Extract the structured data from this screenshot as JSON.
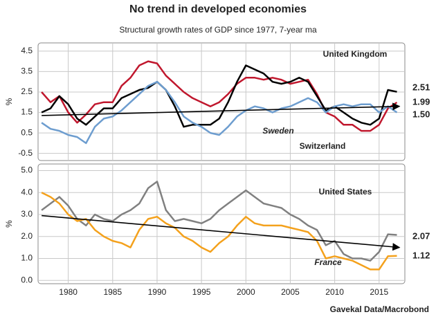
{
  "chart_data": [
    {
      "type": "line",
      "title": "No trend in developed economies",
      "subtitle": "Structural growth rates of GDP since 1977, 7-year ma",
      "ylabel": "%",
      "x": [
        1977,
        1978,
        1979,
        1980,
        1981,
        1982,
        1983,
        1984,
        1985,
        1986,
        1987,
        1988,
        1989,
        1990,
        1991,
        1992,
        1993,
        1994,
        1995,
        1996,
        1997,
        1998,
        1999,
        2000,
        2001,
        2002,
        2003,
        2004,
        2005,
        2006,
        2007,
        2008,
        2009,
        2010,
        2011,
        2012,
        2013,
        2014,
        2015,
        2016,
        2017
      ],
      "xlim": [
        1976.6,
        2017.9
      ],
      "xticks": [
        1980,
        1985,
        1990,
        1995,
        2000,
        2005,
        2010,
        2015
      ],
      "ylim": [
        -0.85,
        4.9
      ],
      "yticks": [
        -0.5,
        0.5,
        1.5,
        2.5,
        3.5,
        4.5
      ],
      "grid": true,
      "series": [
        {
          "name": "United Kingdom",
          "color": "#c0172d",
          "values": [
            2.5,
            2.0,
            2.3,
            1.5,
            1.0,
            1.4,
            1.9,
            2.0,
            2.0,
            2.8,
            3.2,
            3.8,
            4.0,
            3.9,
            3.3,
            2.9,
            2.5,
            2.2,
            2.0,
            1.8,
            2.0,
            2.4,
            2.9,
            3.2,
            3.2,
            3.1,
            3.2,
            3.1,
            2.9,
            3.0,
            3.1,
            2.4,
            1.5,
            1.3,
            0.9,
            0.9,
            0.6,
            0.6,
            0.9,
            1.7,
            1.99
          ]
        },
        {
          "name": "Sweden",
          "color": "#000000",
          "values": [
            1.5,
            1.7,
            2.3,
            1.9,
            1.2,
            0.9,
            1.3,
            1.7,
            1.7,
            2.2,
            2.4,
            2.6,
            2.7,
            3.0,
            2.6,
            1.8,
            0.8,
            0.9,
            0.9,
            0.9,
            1.2,
            2.0,
            3.0,
            3.8,
            3.6,
            3.4,
            3.0,
            2.9,
            3.0,
            3.2,
            3.0,
            2.3,
            1.6,
            1.8,
            1.5,
            1.2,
            1.0,
            0.9,
            1.2,
            2.6,
            2.51
          ]
        },
        {
          "name": "Switzerland",
          "color": "#6d9dcf",
          "values": [
            1.0,
            0.7,
            0.6,
            0.4,
            0.3,
            0.0,
            0.8,
            1.2,
            1.3,
            1.6,
            2.0,
            2.4,
            2.8,
            3.0,
            2.6,
            2.0,
            1.3,
            1.0,
            0.8,
            0.5,
            0.4,
            0.8,
            1.3,
            1.6,
            1.8,
            1.7,
            1.5,
            1.7,
            1.8,
            2.0,
            2.2,
            2.0,
            1.5,
            1.8,
            1.9,
            1.8,
            1.9,
            1.9,
            1.5,
            1.8,
            1.5
          ],
          "value_labels": [
            null,
            null,
            null,
            null,
            null,
            null,
            null,
            null,
            null,
            null,
            null,
            null,
            null,
            null,
            null,
            null,
            null,
            null,
            null,
            null,
            null,
            null,
            null,
            null,
            null,
            null,
            null,
            null,
            null,
            null,
            null,
            null,
            null,
            null,
            null,
            null,
            null,
            null,
            null,
            null,
            "1.50"
          ]
        }
      ],
      "trend_line": {
        "x": [
          1977,
          2017.3
        ],
        "values": [
          1.35,
          1.8
        ]
      }
    },
    {
      "type": "line",
      "ylabel": "%",
      "source": "Gavekal Data/Macrobond",
      "x": [
        1977,
        1978,
        1979,
        1980,
        1981,
        1982,
        1983,
        1984,
        1985,
        1986,
        1987,
        1988,
        1989,
        1990,
        1991,
        1992,
        1993,
        1994,
        1995,
        1996,
        1997,
        1998,
        1999,
        2000,
        2001,
        2002,
        2003,
        2004,
        2005,
        2006,
        2007,
        2008,
        2009,
        2010,
        2011,
        2012,
        2013,
        2014,
        2015,
        2016,
        2017
      ],
      "xlim": [
        1976.6,
        2017.9
      ],
      "xticks": [
        1980,
        1985,
        1990,
        1995,
        2000,
        2005,
        2010,
        2015
      ],
      "ylim": [
        -0.15,
        5.3
      ],
      "yticks": [
        {
          "value": 0,
          "label": "0.0"
        },
        {
          "value": 1,
          "label": "1.0"
        },
        {
          "value": 2,
          "label": "2.0"
        },
        {
          "value": 3,
          "label": "3.0"
        },
        {
          "value": 4,
          "label": "4.0"
        },
        {
          "value": 5,
          "label": "5.0"
        }
      ],
      "grid": true,
      "series": [
        {
          "name": "United States",
          "color": "#808080",
          "values": [
            3.2,
            3.5,
            3.8,
            3.4,
            2.8,
            2.5,
            3.0,
            2.8,
            2.7,
            3.0,
            3.2,
            3.5,
            4.2,
            4.5,
            3.2,
            2.7,
            2.8,
            2.7,
            2.6,
            2.8,
            3.2,
            3.5,
            3.8,
            4.1,
            3.8,
            3.5,
            3.4,
            3.3,
            3.0,
            2.8,
            2.5,
            2.3,
            1.6,
            1.8,
            1.2,
            1.0,
            1.0,
            0.9,
            1.3,
            2.1,
            2.07
          ]
        },
        {
          "name": "France",
          "color": "#f4a11c",
          "values": [
            4.0,
            3.8,
            3.5,
            3.0,
            2.7,
            2.8,
            2.3,
            2.0,
            1.8,
            1.7,
            1.5,
            2.3,
            2.8,
            2.9,
            2.6,
            2.4,
            2.0,
            1.8,
            1.5,
            1.3,
            1.7,
            2.0,
            2.5,
            2.9,
            2.6,
            2.5,
            2.5,
            2.5,
            2.4,
            2.3,
            2.2,
            1.8,
            1.0,
            1.1,
            1.0,
            0.9,
            0.7,
            0.5,
            0.5,
            1.1,
            1.12
          ]
        }
      ],
      "trend_line": {
        "x": [
          1977,
          2017.3
        ],
        "values": [
          2.95,
          1.5
        ]
      }
    }
  ]
}
